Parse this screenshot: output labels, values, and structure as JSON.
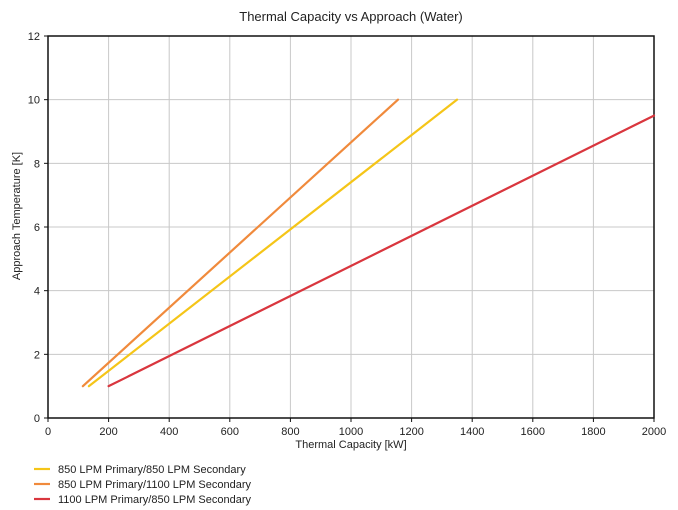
{
  "chart_data": {
    "type": "line",
    "title": "Thermal Capacity vs Approach (Water)",
    "xlabel": "Thermal Capacity [kW]",
    "ylabel": "Approach Temperature [K]",
    "xlim": [
      0,
      2000
    ],
    "ylim": [
      0,
      12
    ],
    "xticks": [
      0,
      200,
      400,
      600,
      800,
      1000,
      1200,
      1400,
      1600,
      1800,
      2000
    ],
    "yticks": [
      0,
      2,
      4,
      6,
      8,
      10,
      12
    ],
    "grid": true,
    "legend_position": "bottom-left",
    "series": [
      {
        "name": "850 LPM Primary/850 LPM Secondary",
        "color": "#f5c518",
        "points": [
          [
            135,
            1.0
          ],
          [
            1350,
            10.0
          ]
        ]
      },
      {
        "name": "850 LPM Primary/1100 LPM Secondary",
        "color": "#f08a3c",
        "points": [
          [
            115,
            1.0
          ],
          [
            1155,
            10.0
          ]
        ]
      },
      {
        "name": "1100 LPM Primary/850 LPM Secondary",
        "color": "#d9363e",
        "points": [
          [
            200,
            1.0
          ],
          [
            2000,
            9.5
          ]
        ]
      }
    ]
  }
}
